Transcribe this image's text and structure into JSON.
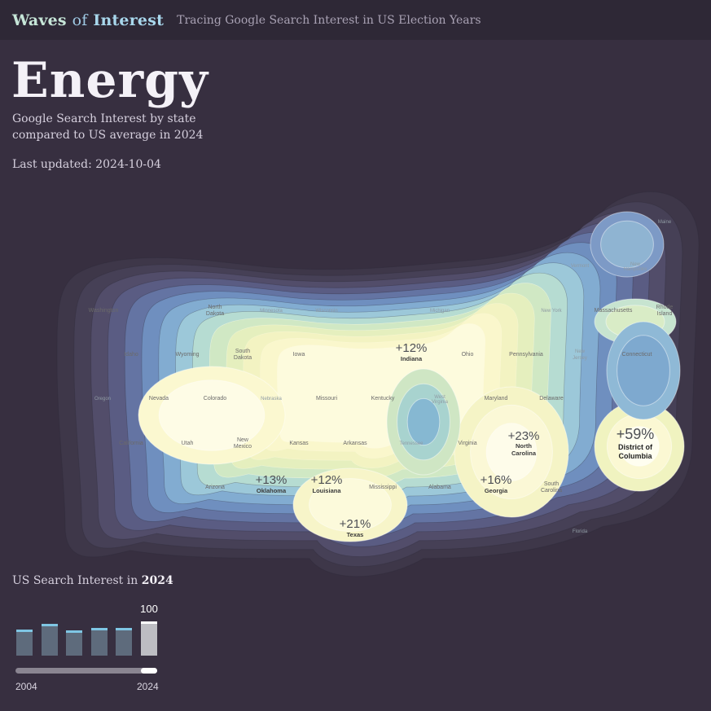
{
  "header": {
    "brand_part1": "Waves",
    "brand_part2": "of",
    "brand_part3": "Interest",
    "tagline": "Tracing Google Search Interest in US Election Years"
  },
  "topic": {
    "title": "Energy",
    "subtitle": "Google Search Interest by state compared to US average in 2024",
    "last_updated": "Last updated: 2024-10-04"
  },
  "map": {
    "color_scale": [
      "#3e3749",
      "#464056",
      "#524d6a",
      "#5a5c83",
      "#6474a3",
      "#6f8fbf",
      "#82acd1",
      "#9cc8d9",
      "#b6dcd2",
      "#d0e8c4",
      "#e5efbe",
      "#f3f3c2",
      "#faf7cc",
      "#fdfbdd"
    ],
    "highlights": [
      {
        "state": "District of Columbia",
        "value": "+59%"
      },
      {
        "state": "North Carolina",
        "value": "+23%"
      },
      {
        "state": "Texas",
        "value": "+21%"
      },
      {
        "state": "Georgia",
        "value": "+16%"
      },
      {
        "state": "Oklahoma",
        "value": "+13%"
      },
      {
        "state": "Louisiana",
        "value": "+12%"
      },
      {
        "state": "Indiana",
        "value": "+12%"
      }
    ],
    "state_labels": [
      "Washington",
      "North Dakota",
      "Minnesota",
      "Wisconsin",
      "Michigan",
      "New York",
      "Massachusetts",
      "Rhode Island",
      "Maine",
      "New Hampshire",
      "Vermont",
      "Idaho",
      "Wyoming",
      "South Dakota",
      "Iowa",
      "Ohio",
      "Pennsylvania",
      "New Jersey",
      "Connecticut",
      "Oregon",
      "Nevada",
      "Colorado",
      "Nebraska",
      "Missouri",
      "Kentucky",
      "West Virginia",
      "Maryland",
      "Delaware",
      "California",
      "Utah",
      "New Mexico",
      "Kansas",
      "Arkansas",
      "Tennessee",
      "Virginia",
      "Arizona",
      "Mississippi",
      "Alabama",
      "South Carolina",
      "Florida"
    ]
  },
  "bars": {
    "title_prefix": "US Search Interest in",
    "title_year": "2024",
    "selected_value": "100",
    "values": [
      60,
      76,
      58,
      64,
      64,
      82
    ],
    "selected_index": 5,
    "year_start": "2004",
    "year_end": "2024",
    "cap_color": "#7fc6e4",
    "bar_color": "#5e6b7c"
  }
}
